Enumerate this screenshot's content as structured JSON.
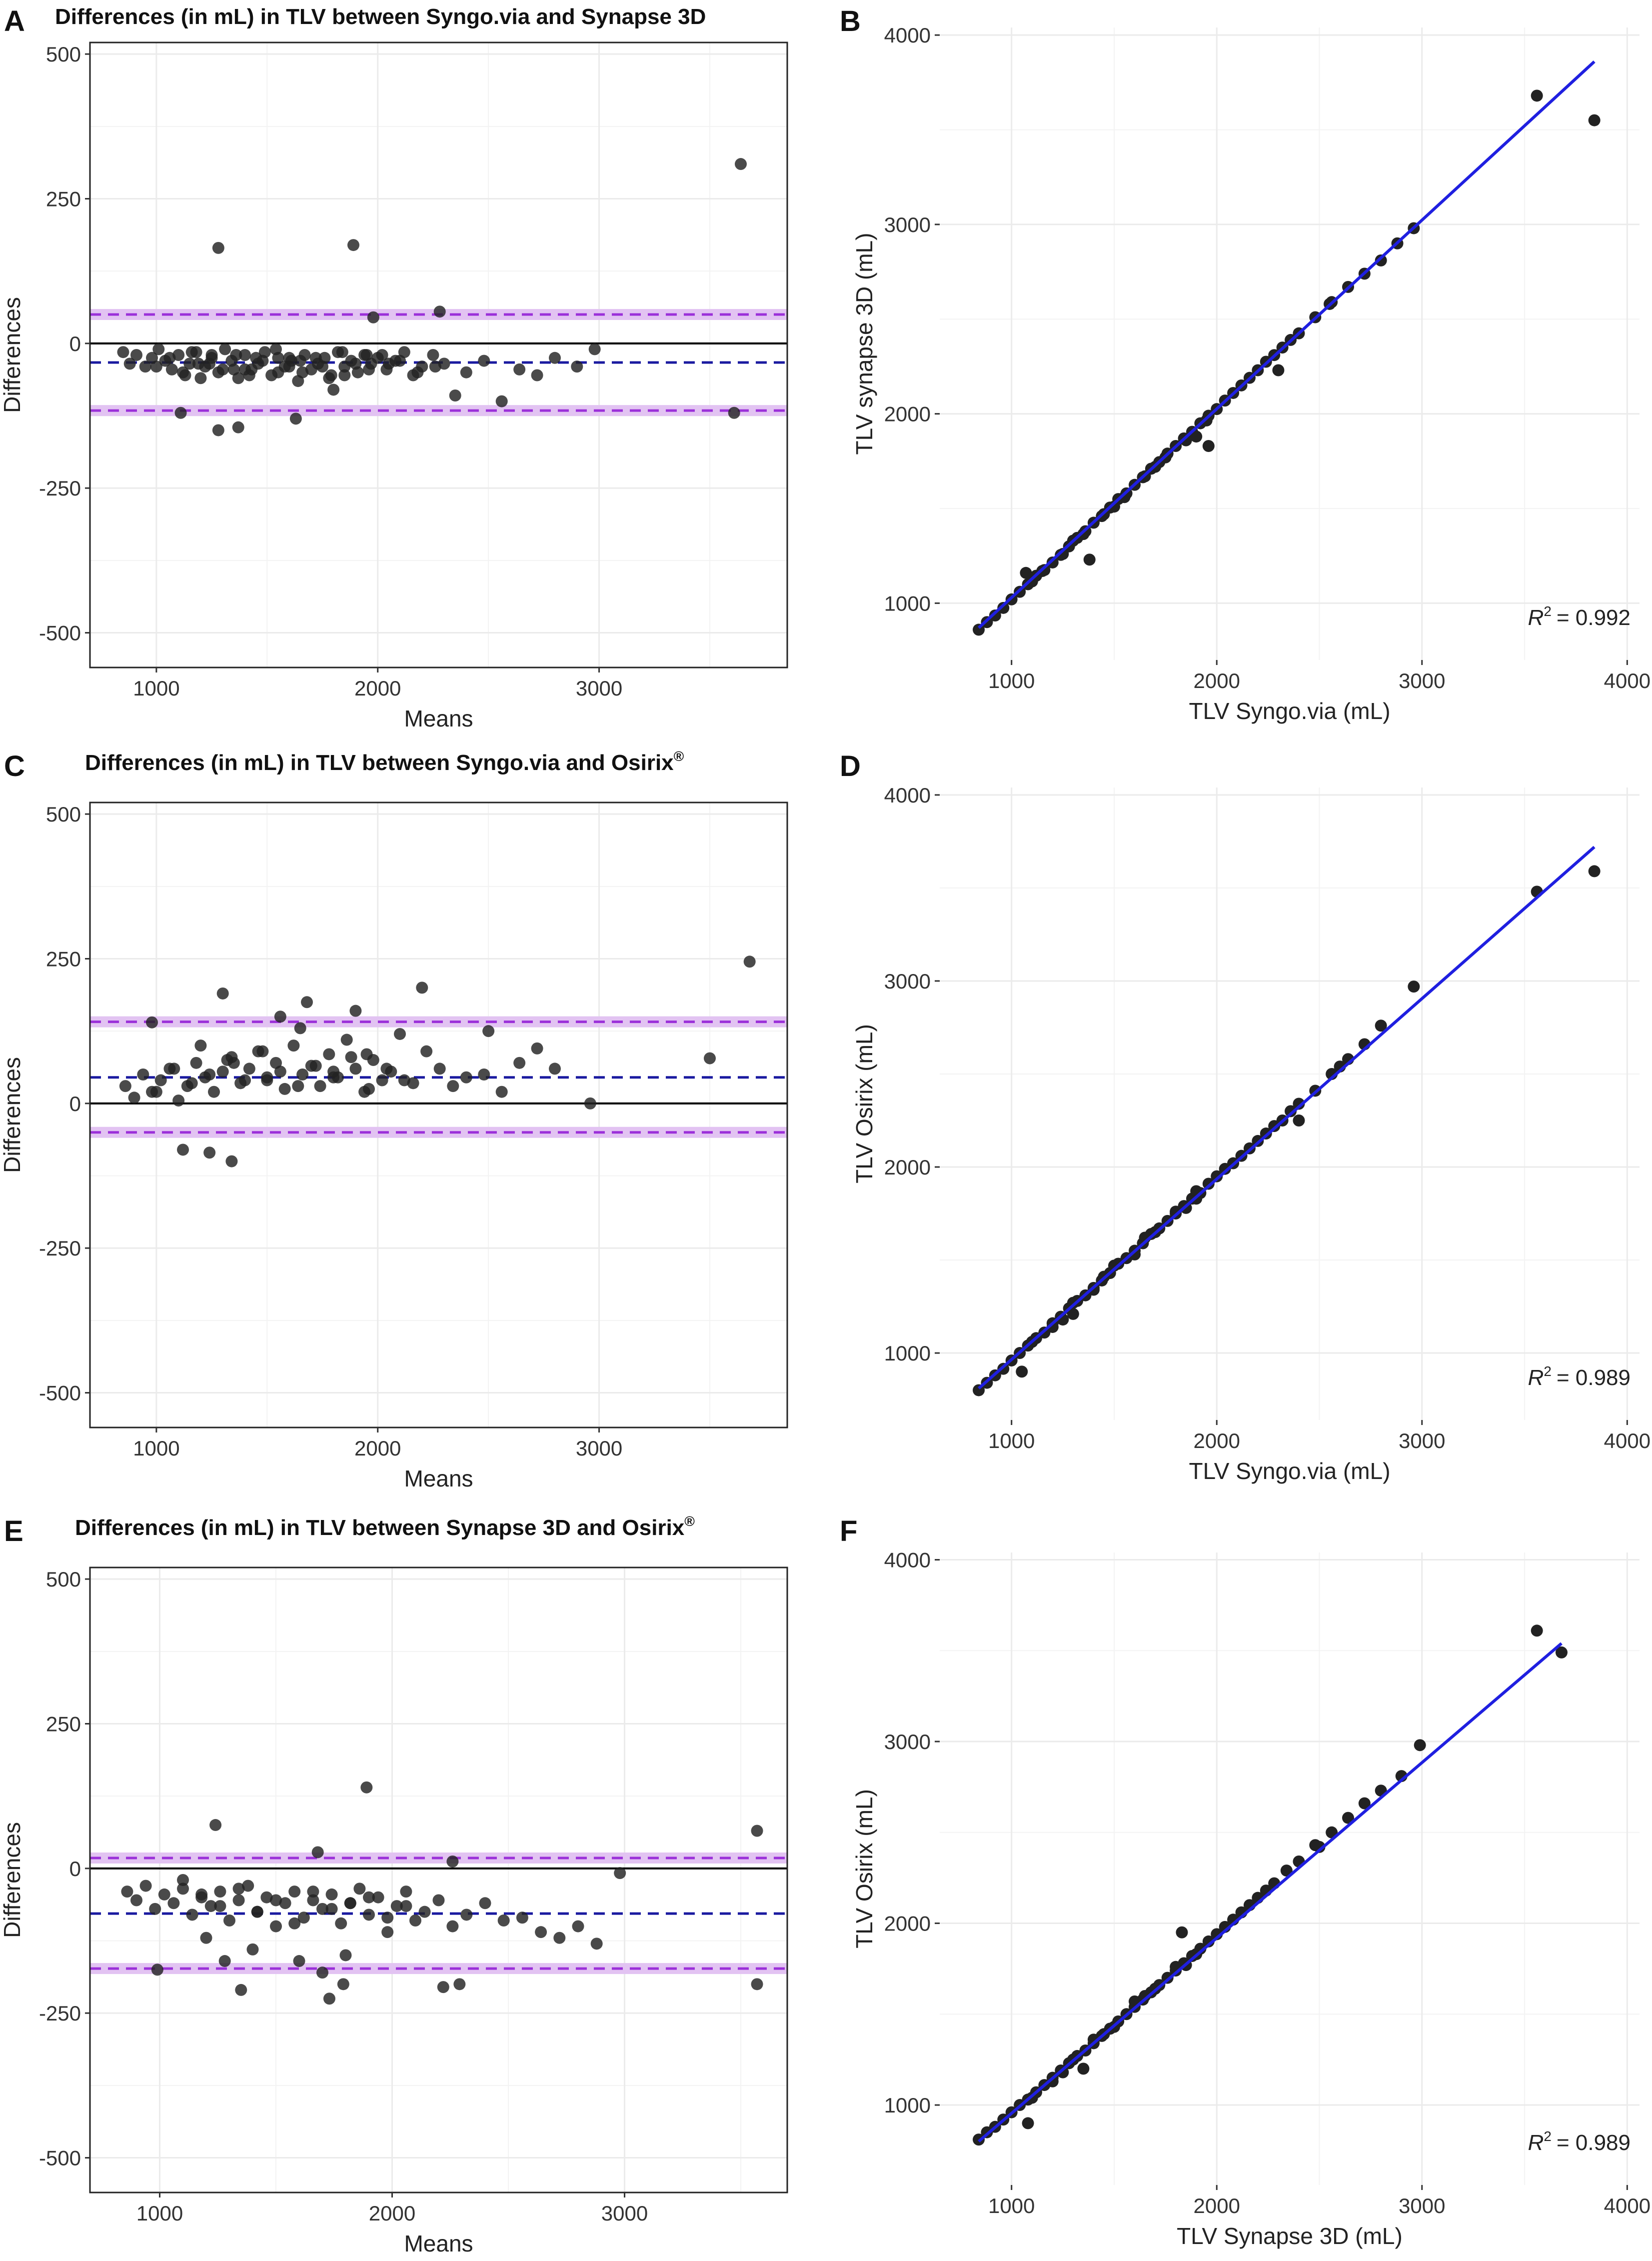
{
  "colors": {
    "point": "#222222",
    "zero_line": "#000000",
    "mean_line": "#1a1aa0",
    "loa_line": "#9b30d9",
    "loa_band": "#e2c3f2",
    "fit_line": "#1f1fe0",
    "grid": "#ebebeb",
    "frame": "#222222"
  },
  "chart_data": [
    {
      "id": "A",
      "panel_letter": "A",
      "type": "scatter",
      "subtype": "bland-altman",
      "title": "Differences (in mL) in TLV between Syngo.via and Synapse 3D",
      "title_sup": "",
      "xlabel": "Means",
      "ylabel": "Differences",
      "xlim": [
        700,
        3850
      ],
      "ylim": [
        -560,
        520
      ],
      "xticks": [
        1000,
        2000,
        3000
      ],
      "xtick_labels": [
        "1000",
        "2000",
        "3000"
      ],
      "yticks": [
        -500,
        -250,
        0,
        250,
        500
      ],
      "ytick_labels": [
        "-500",
        "-250",
        "0",
        "250",
        "500"
      ],
      "grid": true,
      "zero_line": 0,
      "mean_diff": -33,
      "upper_loa": 50,
      "lower_loa": -116,
      "points_x": [
        850,
        880,
        910,
        950,
        980,
        1010,
        1040,
        1070,
        1100,
        1130,
        1160,
        1190,
        1220,
        1250,
        1280,
        1310,
        1340,
        1370,
        1400,
        1430,
        1460,
        1490,
        1520,
        1550,
        1580,
        1610,
        1640,
        1670,
        1700,
        1730,
        1760,
        1790,
        1820,
        1850,
        1880,
        1910,
        1940,
        1970,
        2000,
        2040,
        2080,
        2120,
        2160,
        2200,
        2250,
        2300,
        2350,
        2400,
        2480,
        2560,
        2640,
        2720,
        2800,
        2900,
        2980,
        1000,
        1060,
        1120,
        1180,
        1240,
        1300,
        1360,
        1420,
        1480,
        1540,
        1600,
        1660,
        1720,
        1780,
        1840,
        1900,
        1960,
        2020,
        2100,
        2180,
        2260,
        1150,
        1250,
        1350,
        1450,
        1550,
        1650,
        1750,
        1850,
        1950,
        2050,
        1200,
        1400,
        1600,
        1800,
        1280,
        1890,
        1980,
        2280,
        3640,
        1110,
        1280,
        1370,
        1630,
        3610
      ],
      "points_y": [
        -15,
        -35,
        -20,
        -40,
        -25,
        -10,
        -30,
        -45,
        -20,
        -55,
        -15,
        -35,
        -40,
        -25,
        -50,
        -10,
        -30,
        -60,
        -20,
        -45,
        -35,
        -15,
        -55,
        -25,
        -40,
        -30,
        -65,
        -20,
        -45,
        -35,
        -25,
        -55,
        -15,
        -40,
        -30,
        -50,
        -20,
        -35,
        -25,
        -45,
        -30,
        -15,
        -55,
        -40,
        -20,
        -35,
        -90,
        -50,
        -30,
        -100,
        -45,
        -55,
        -25,
        -40,
        -10,
        -40,
        -25,
        -50,
        -15,
        -35,
        -45,
        -20,
        -55,
        -30,
        -10,
        -40,
        -50,
        -25,
        -60,
        -15,
        -35,
        -45,
        -20,
        -30,
        -50,
        -40,
        -35,
        -20,
        -45,
        -25,
        -50,
        -30,
        -40,
        -55,
        -20,
        -35,
        -60,
        -45,
        -25,
        -80,
        165,
        170,
        45,
        55,
        310,
        -120,
        -150,
        -145,
        -130,
        -120
      ],
      "r2_label": ""
    },
    {
      "id": "B",
      "panel_letter": "B",
      "type": "scatter",
      "subtype": "regression",
      "title": "",
      "xlabel": "TLV Syngo.via (mL)",
      "ylabel": "TLV synapse 3D (mL)",
      "xlim": [
        650,
        4060
      ],
      "ylim": [
        700,
        4040
      ],
      "xticks": [
        1000,
        2000,
        3000,
        4000
      ],
      "xtick_labels": [
        "1000",
        "2000",
        "3000",
        "4000"
      ],
      "yticks": [
        1000,
        2000,
        3000,
        4000
      ],
      "ytick_labels": [
        "1000",
        "2000",
        "3000",
        "4000"
      ],
      "grid": true,
      "fit_line": {
        "x": [
          840,
          3840
        ],
        "y": [
          870,
          3860
        ]
      },
      "points_x": [
        840,
        880,
        920,
        960,
        1000,
        1040,
        1080,
        1120,
        1160,
        1200,
        1240,
        1280,
        1320,
        1360,
        1400,
        1440,
        1480,
        1520,
        1560,
        1600,
        1640,
        1680,
        1720,
        1760,
        1800,
        1840,
        1880,
        1920,
        1960,
        2000,
        2040,
        2080,
        2120,
        2160,
        2200,
        2240,
        2280,
        2320,
        2360,
        2400,
        2480,
        2560,
        2640,
        2720,
        2800,
        2880,
        2960,
        1100,
        1150,
        1250,
        1350,
        1450,
        1550,
        1650,
        1750,
        1850,
        1950,
        1300,
        1500,
        1700,
        1900,
        1070,
        1380,
        1960,
        2300,
        2550,
        3560,
        3840
      ],
      "points_y": [
        860,
        900,
        935,
        975,
        1020,
        1060,
        1100,
        1145,
        1175,
        1215,
        1255,
        1300,
        1345,
        1380,
        1425,
        1460,
        1505,
        1550,
        1580,
        1625,
        1665,
        1710,
        1745,
        1790,
        1830,
        1870,
        1905,
        1950,
        1990,
        2025,
        2070,
        2110,
        2150,
        2190,
        2230,
        2275,
        2310,
        2350,
        2390,
        2425,
        2510,
        2590,
        2670,
        2740,
        2810,
        2900,
        2980,
        1115,
        1170,
        1260,
        1365,
        1470,
        1560,
        1670,
        1770,
        1860,
        1965,
        1330,
        1510,
        1720,
        1880,
        1160,
        1230,
        1830,
        2230,
        2580,
        3680,
        3550
      ],
      "r2_label": "= 0.992"
    },
    {
      "id": "C",
      "panel_letter": "C",
      "type": "scatter",
      "subtype": "bland-altman",
      "title": "Differences (in mL) in TLV between Syngo.via and Osirix",
      "title_sup": "®",
      "xlabel": "Means",
      "ylabel": "Differences",
      "xlim": [
        700,
        3850
      ],
      "ylim": [
        -560,
        520
      ],
      "xticks": [
        1000,
        2000,
        3000
      ],
      "xtick_labels": [
        "1000",
        "2000",
        "3000"
      ],
      "yticks": [
        -500,
        -250,
        0,
        250,
        500
      ],
      "ytick_labels": [
        "-500",
        "-250",
        "0",
        "250",
        "500"
      ],
      "grid": true,
      "zero_line": 0,
      "mean_diff": 45,
      "upper_loa": 141,
      "lower_loa": -50,
      "points_x": [
        860,
        900,
        940,
        980,
        1020,
        1060,
        1100,
        1140,
        1180,
        1220,
        1260,
        1300,
        1340,
        1380,
        1420,
        1460,
        1500,
        1540,
        1580,
        1620,
        1660,
        1700,
        1740,
        1780,
        1820,
        1860,
        1900,
        1940,
        1980,
        2020,
        2060,
        2100,
        2160,
        2220,
        2280,
        2340,
        2400,
        2480,
        2560,
        2640,
        2720,
        2800,
        2960,
        1000,
        1080,
        1160,
        1240,
        1320,
        1400,
        1480,
        1560,
        1640,
        1720,
        1800,
        1880,
        1960,
        2040,
        2120,
        1200,
        1350,
        1500,
        1650,
        1800,
        1950,
        1120,
        1240,
        1340,
        1300,
        1560,
        1680,
        1900,
        2200,
        2500,
        3500,
        3680,
        980
      ],
      "points_y": [
        30,
        10,
        50,
        20,
        40,
        60,
        5,
        30,
        70,
        45,
        20,
        55,
        80,
        35,
        60,
        90,
        40,
        70,
        25,
        100,
        50,
        65,
        30,
        85,
        45,
        110,
        60,
        20,
        75,
        40,
        55,
        120,
        35,
        90,
        60,
        30,
        45,
        50,
        20,
        70,
        95,
        60,
        0,
        20,
        60,
        35,
        50,
        75,
        40,
        90,
        55,
        30,
        65,
        45,
        80,
        25,
        60,
        40,
        100,
        70,
        45,
        130,
        55,
        85,
        -80,
        -85,
        -100,
        190,
        150,
        175,
        160,
        200,
        125,
        78,
        245,
        140
      ],
      "r2_label": ""
    },
    {
      "id": "D",
      "panel_letter": "D",
      "type": "scatter",
      "subtype": "regression",
      "title": "",
      "xlabel": "TLV Syngo.via (mL)",
      "ylabel": "TLV Osirix (mL)",
      "xlim": [
        650,
        4060
      ],
      "ylim": [
        640,
        4040
      ],
      "xticks": [
        1000,
        2000,
        3000,
        4000
      ],
      "xtick_labels": [
        "1000",
        "2000",
        "3000",
        "4000"
      ],
      "yticks": [
        1000,
        2000,
        3000,
        4000
      ],
      "ytick_labels": [
        "1000",
        "2000",
        "3000",
        "4000"
      ],
      "grid": true,
      "fit_line": {
        "x": [
          840,
          3840
        ],
        "y": [
          810,
          3720
        ]
      },
      "points_x": [
        840,
        880,
        920,
        960,
        1000,
        1040,
        1080,
        1120,
        1160,
        1200,
        1240,
        1280,
        1320,
        1360,
        1400,
        1440,
        1480,
        1520,
        1560,
        1600,
        1640,
        1680,
        1720,
        1760,
        1800,
        1840,
        1880,
        1920,
        1960,
        2000,
        2040,
        2080,
        2120,
        2160,
        2200,
        2240,
        2280,
        2320,
        2360,
        2400,
        2480,
        2560,
        2640,
        2720,
        2800,
        2960,
        1100,
        1200,
        1300,
        1400,
        1500,
        1600,
        1700,
        1800,
        1900,
        1250,
        1450,
        1650,
        1850,
        1050,
        1300,
        1900,
        2400,
        2600,
        3560,
        3840
      ],
      "points_y": [
        800,
        840,
        880,
        915,
        960,
        1000,
        1040,
        1080,
        1110,
        1160,
        1195,
        1240,
        1280,
        1310,
        1350,
        1390,
        1430,
        1480,
        1510,
        1550,
        1590,
        1640,
        1670,
        1710,
        1750,
        1790,
        1830,
        1860,
        1910,
        1950,
        1990,
        2020,
        2060,
        2100,
        2140,
        2180,
        2220,
        2250,
        2300,
        2340,
        2410,
        2500,
        2580,
        2660,
        2760,
        2970,
        1060,
        1140,
        1270,
        1340,
        1470,
        1530,
        1650,
        1760,
        1830,
        1180,
        1410,
        1620,
        1780,
        900,
        1210,
        1870,
        2250,
        2540,
        3480,
        3590
      ],
      "r2_label": "= 0.989"
    },
    {
      "id": "E",
      "panel_letter": "E",
      "type": "scatter",
      "subtype": "bland-altman",
      "title": "Differences (in mL) in TLV between Synapse 3D and Osirix",
      "title_sup": "®",
      "xlabel": "Means",
      "ylabel": "Differences",
      "xlim": [
        700,
        3700
      ],
      "ylim": [
        -560,
        520
      ],
      "xticks": [
        1000,
        2000,
        3000
      ],
      "xtick_labels": [
        "1000",
        "2000",
        "3000"
      ],
      "yticks": [
        -500,
        -250,
        0,
        250,
        500
      ],
      "ytick_labels": [
        "-500",
        "-250",
        "0",
        "250",
        "500"
      ],
      "grid": true,
      "zero_line": 0,
      "mean_diff": -78,
      "upper_loa": 18,
      "lower_loa": -173,
      "points_x": [
        860,
        900,
        940,
        980,
        1020,
        1060,
        1100,
        1140,
        1180,
        1220,
        1260,
        1300,
        1340,
        1380,
        1420,
        1460,
        1500,
        1540,
        1580,
        1620,
        1660,
        1700,
        1740,
        1780,
        1820,
        1860,
        1900,
        1940,
        1980,
        2020,
        2060,
        2100,
        2140,
        2200,
        2260,
        2320,
        2400,
        2480,
        2560,
        2640,
        2720,
        2800,
        2880,
        1100,
        1180,
        1260,
        1340,
        1420,
        1500,
        1580,
        1660,
        1740,
        1820,
        1900,
        1980,
        2060,
        1200,
        1400,
        1600,
        1800,
        1240,
        1680,
        1890,
        2260,
        2980,
        3570,
        990,
        1280,
        1350,
        1700,
        1730,
        1790,
        2220,
        2290,
        3570
      ],
      "points_y": [
        -40,
        -55,
        -30,
        -70,
        -45,
        -60,
        -35,
        -80,
        -50,
        -65,
        -40,
        -90,
        -55,
        -30,
        -75,
        -50,
        -100,
        -60,
        -40,
        -85,
        -55,
        -70,
        -45,
        -95,
        -60,
        -35,
        -80,
        -50,
        -110,
        -65,
        -40,
        -90,
        -75,
        -55,
        -100,
        -80,
        -60,
        -90,
        -85,
        -110,
        -120,
        -100,
        -130,
        -20,
        -45,
        -65,
        -35,
        -75,
        -55,
        -95,
        -40,
        -70,
        -60,
        -50,
        -85,
        -65,
        -120,
        -140,
        -160,
        -150,
        75,
        28,
        140,
        12,
        -8,
        65,
        -175,
        -160,
        -210,
        -180,
        -225,
        -200,
        -205,
        -200,
        -200
      ],
      "r2_label": ""
    },
    {
      "id": "F",
      "panel_letter": "F",
      "type": "scatter",
      "subtype": "regression",
      "title": "",
      "xlabel": "TLV Synapse 3D (mL)",
      "ylabel": "TLV Osirix (mL)",
      "xlim": [
        650,
        4060
      ],
      "ylim": [
        560,
        4040
      ],
      "xticks": [
        1000,
        2000,
        3000,
        4000
      ],
      "xtick_labels": [
        "1000",
        "2000",
        "3000",
        "4000"
      ],
      "yticks": [
        1000,
        2000,
        3000,
        4000
      ],
      "ytick_labels": [
        "1000",
        "2000",
        "3000",
        "4000"
      ],
      "grid": true,
      "fit_line": {
        "x": [
          840,
          3680
        ],
        "y": [
          800,
          3540
        ]
      },
      "points_x": [
        840,
        880,
        920,
        960,
        1000,
        1040,
        1080,
        1120,
        1160,
        1200,
        1240,
        1280,
        1320,
        1360,
        1400,
        1440,
        1480,
        1520,
        1560,
        1600,
        1640,
        1680,
        1720,
        1760,
        1800,
        1840,
        1880,
        1920,
        1960,
        2000,
        2040,
        2080,
        2120,
        2160,
        2200,
        2240,
        2280,
        2340,
        2400,
        2480,
        2560,
        2640,
        2720,
        2800,
        2900,
        2990,
        1100,
        1200,
        1300,
        1400,
        1500,
        1600,
        1700,
        1800,
        1900,
        1250,
        1450,
        1650,
        1850,
        1080,
        1350,
        1830,
        2500,
        3560,
        3680
      ],
      "points_y": [
        810,
        850,
        880,
        920,
        960,
        1000,
        1030,
        1070,
        1110,
        1150,
        1190,
        1230,
        1270,
        1300,
        1340,
        1380,
        1420,
        1460,
        1500,
        1540,
        1580,
        1620,
        1660,
        1700,
        1740,
        1780,
        1820,
        1860,
        1900,
        1940,
        1980,
        2020,
        2060,
        2100,
        2140,
        2180,
        2220,
        2290,
        2340,
        2430,
        2500,
        2580,
        2660,
        2730,
        2810,
        2980,
        1040,
        1130,
        1250,
        1360,
        1430,
        1570,
        1640,
        1760,
        1830,
        1180,
        1390,
        1600,
        1770,
        900,
        1200,
        1950,
        2420,
        3610,
        3490
      ],
      "r2_label": "= 0.989"
    }
  ]
}
